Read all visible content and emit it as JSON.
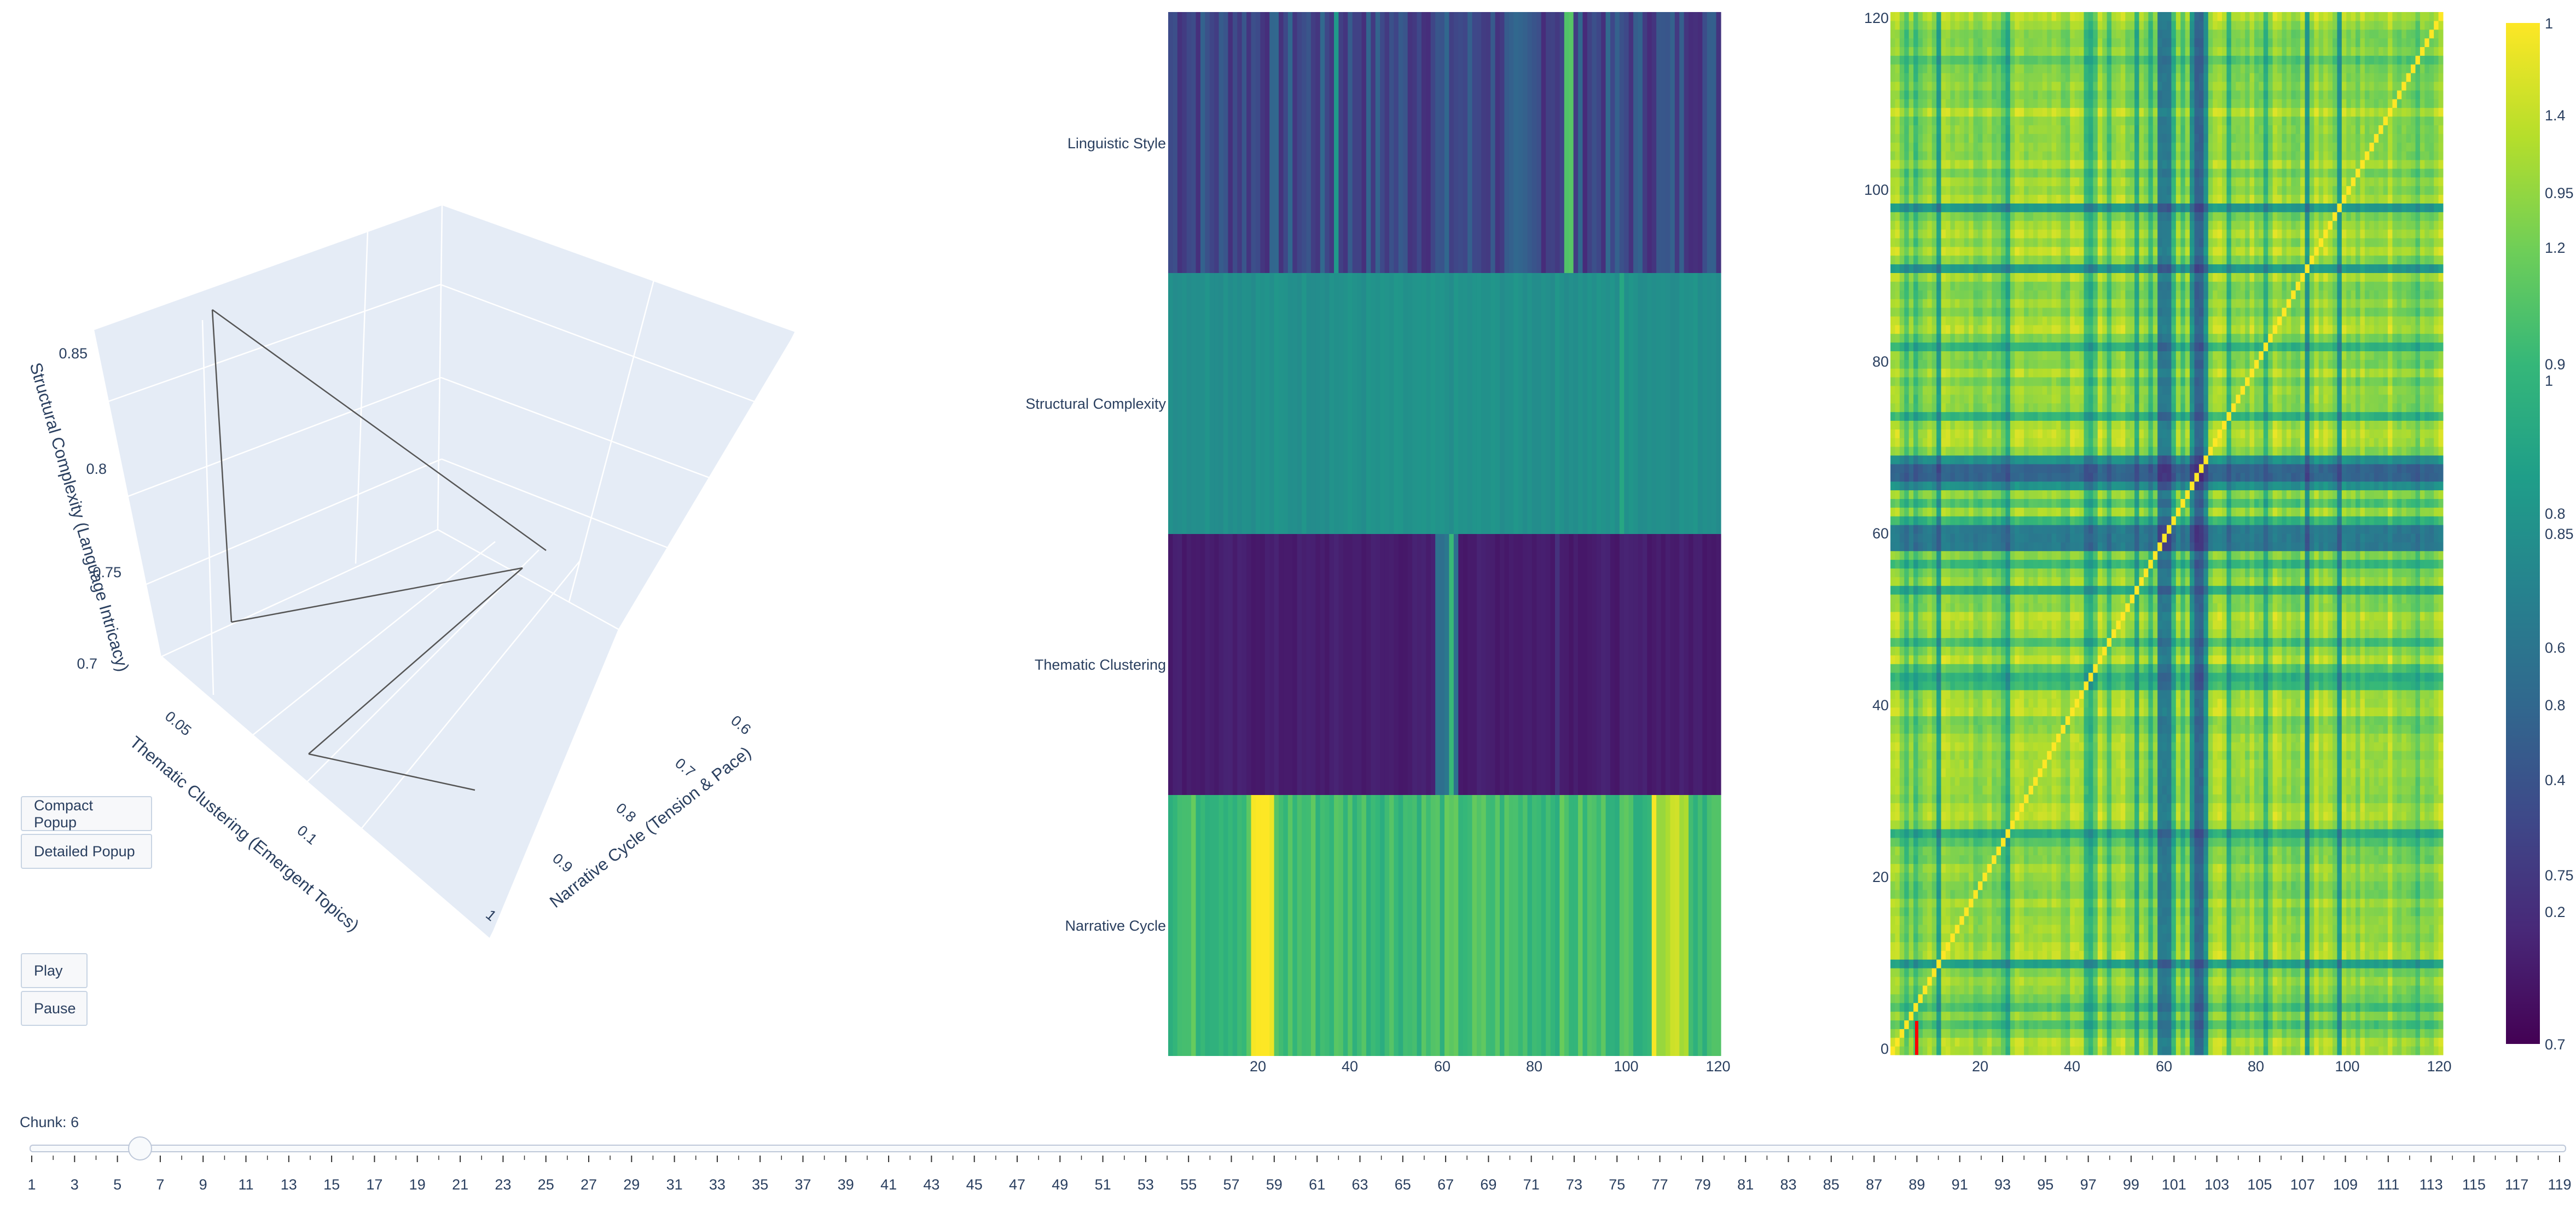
{
  "controls": {
    "compact_popup_label": "Compact Popup",
    "detailed_popup_label": "Detailed Popup",
    "play_label": "Play",
    "pause_label": "Pause"
  },
  "slider": {
    "prefix": "Chunk: ",
    "current": 6,
    "min": 1,
    "max": 119,
    "tick_labels": [
      1,
      3,
      5,
      7,
      9,
      11,
      13,
      15,
      17,
      19,
      21,
      23,
      25,
      27,
      29,
      31,
      33,
      35,
      37,
      39,
      41,
      43,
      45,
      47,
      49,
      51,
      53,
      55,
      57,
      59,
      61,
      63,
      65,
      67,
      69,
      71,
      73,
      75,
      77,
      79,
      81,
      83,
      85,
      87,
      89,
      91,
      93,
      95,
      97,
      99,
      101,
      103,
      105,
      107,
      109,
      111,
      113,
      115,
      117,
      119
    ]
  },
  "chart_data": [
    {
      "type": "scatter3d",
      "title": "",
      "xlabel": "Narrative Cycle (Tension & Pace)",
      "ylabel": "Thematic Clustering (Emergent Topics)",
      "zlabel": "Structural Complexity (Language Intricacy)",
      "x_ticks": [
        "0.6",
        "0.7",
        "0.8",
        "0.9",
        "1"
      ],
      "y_ticks": [
        "0.05",
        "0.1"
      ],
      "z_ticks": [
        "0.7",
        "0.75",
        "0.8",
        "0.85"
      ],
      "points": [
        {
          "x": 0.95,
          "y": 0.06,
          "z": 0.68,
          "color": "#3e6290"
        },
        {
          "x": 0.85,
          "y": 0.08,
          "z": 0.71,
          "color": "#3c5b8d"
        },
        {
          "x": 0.65,
          "y": 0.12,
          "z": 0.76,
          "color": "#64c55f"
        },
        {
          "x": 0.6,
          "y": 0.03,
          "z": 0.79,
          "color": "#9cd641"
        },
        {
          "x": 0.57,
          "y": 0.02,
          "z": 0.8,
          "color": "#440154"
        },
        {
          "x": 0.95,
          "y": 0.13,
          "z": 0.86,
          "color": "#f1e51d"
        }
      ]
    },
    {
      "type": "heatmap",
      "rows": [
        "Linguistic Style",
        "Structural Complexity",
        "Thematic Clustering",
        "Narrative Cycle"
      ],
      "x_ticks": [
        "20",
        "40",
        "60",
        "80",
        "100",
        "120"
      ],
      "xlim": [
        1,
        120
      ]
    },
    {
      "type": "heatmap",
      "x_ticks": [
        "20",
        "40",
        "60",
        "80",
        "100",
        "120"
      ],
      "y_ticks": [
        "0",
        "20",
        "40",
        "60",
        "80",
        "100",
        "120"
      ],
      "xlim": [
        0,
        120
      ],
      "ylim": [
        0,
        120
      ],
      "highlight_chunk": 6
    },
    {
      "type": "colorbar",
      "colorscale": "Viridis",
      "tick_labels": [
        "1",
        "1.4",
        "0.95",
        "1.2",
        "0.9",
        "1",
        "0.8",
        "0.85",
        "0.6",
        "0.8",
        "0.4",
        "0.75",
        "0.2",
        "0.7"
      ]
    }
  ]
}
